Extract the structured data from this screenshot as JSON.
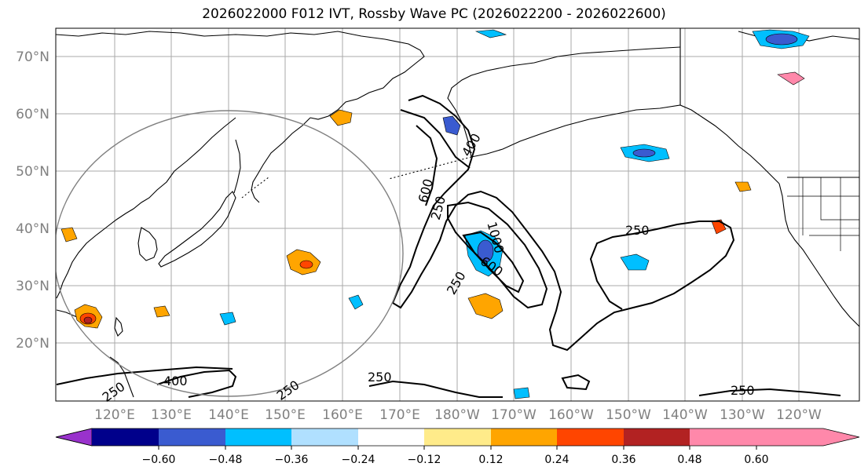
{
  "title": "2026022000 F012 IVT, Rossby Wave PC (2026022200 - 2026022600)",
  "lat_labels": [
    "70°N",
    "60°N",
    "50°N",
    "40°N",
    "30°N",
    "20°N"
  ],
  "lon_labels": [
    "120°E",
    "130°E",
    "140°E",
    "150°E",
    "160°E",
    "170°E",
    "180°W",
    "170°W",
    "160°W",
    "150°W",
    "140°W",
    "130°W",
    "120°W"
  ],
  "contour_labels": [
    "400",
    "600",
    "250",
    "1000",
    "250",
    "600",
    "250",
    "250",
    "400",
    "250",
    "250",
    "250"
  ],
  "colorbar": {
    "ticks": [
      "−0.60",
      "−0.48",
      "−0.36",
      "−0.24",
      "−0.12",
      "0.12",
      "0.24",
      "0.36",
      "0.48",
      "0.60"
    ],
    "colors": [
      "#9932cc",
      "#00008b",
      "#3a5bd0",
      "#00bfff",
      "#b0e0ff",
      "#ffffff",
      "#ffeb8a",
      "#ffa500",
      "#ff4500",
      "#b22222",
      "#ff88aa"
    ]
  },
  "colors": {
    "contour": "#000000",
    "grid": "#aaaaaa",
    "coast": "#000000",
    "circle": "#808080"
  }
}
